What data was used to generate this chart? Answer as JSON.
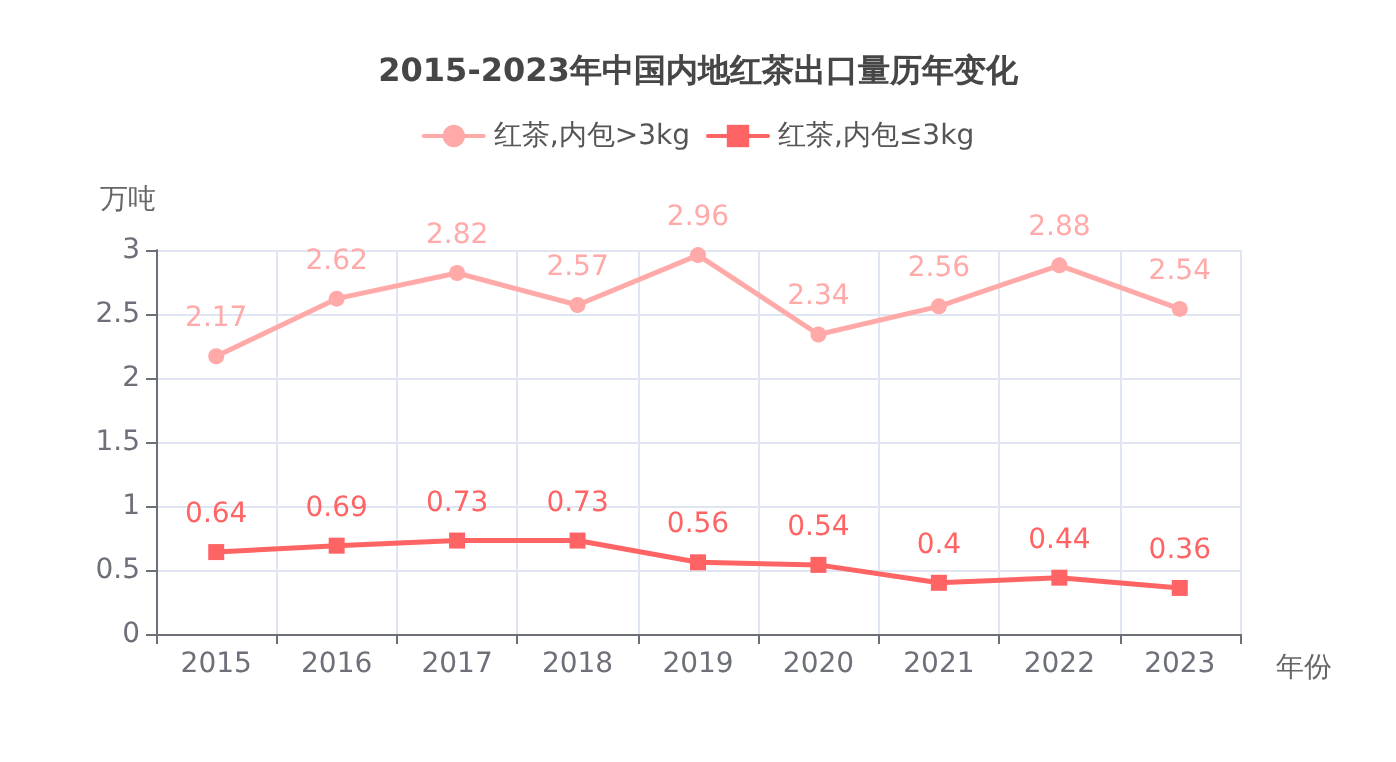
{
  "chart_data": {
    "type": "line",
    "title": "2015-2023年中国内地红茶出口量历年变化",
    "xlabel": "年份",
    "ylabel": "万吨",
    "categories": [
      "2015",
      "2016",
      "2017",
      "2018",
      "2019",
      "2020",
      "2021",
      "2022",
      "2023"
    ],
    "series": [
      {
        "name": "红茶,内包>3kg",
        "color": "#ffaaa8",
        "marker": "circle",
        "values": [
          2.17,
          2.62,
          2.82,
          2.57,
          2.96,
          2.34,
          2.56,
          2.88,
          2.54
        ]
      },
      {
        "name": "红茶,内包≤3kg",
        "color": "#ff6464",
        "marker": "square",
        "values": [
          0.64,
          0.69,
          0.73,
          0.73,
          0.56,
          0.54,
          0.4,
          0.44,
          0.36
        ]
      }
    ],
    "ylim": [
      0,
      3
    ],
    "yticks": [
      0,
      0.5,
      1,
      1.5,
      2,
      2.5,
      3
    ],
    "grid": true,
    "legend": "top",
    "data_labels": true,
    "line_style": "solid"
  }
}
